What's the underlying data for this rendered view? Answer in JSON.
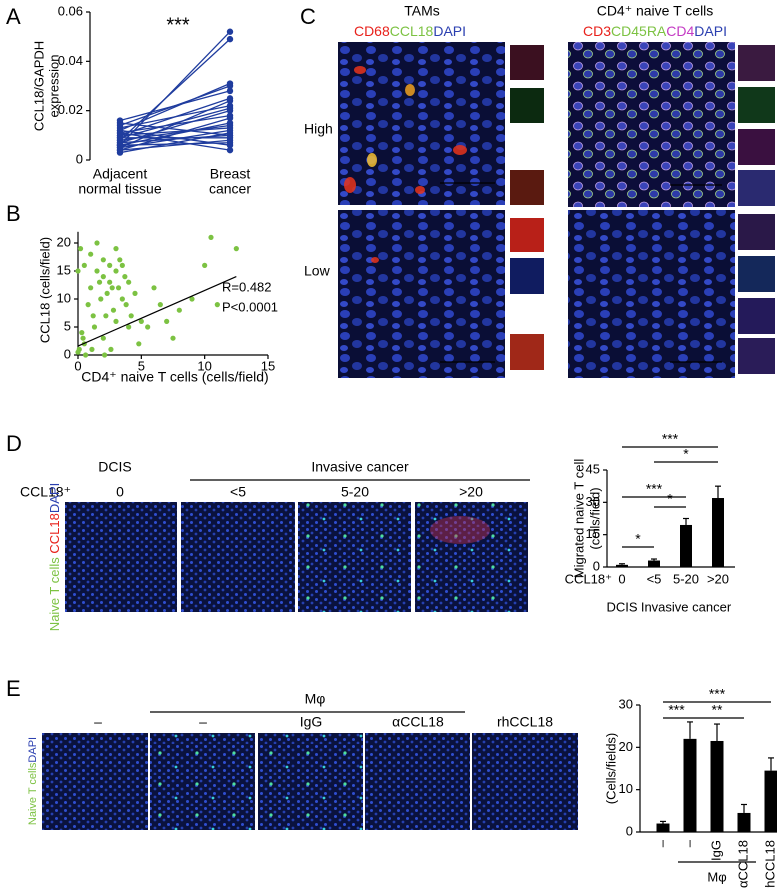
{
  "panel_letters": [
    "A",
    "B",
    "C",
    "D",
    "E"
  ],
  "chart_data": [
    {
      "type": "line",
      "annotation": "***",
      "ylabel": [
        "CCL18/GAPDH",
        "expression"
      ],
      "categories": [
        [
          "Adjacent",
          "normal tissue"
        ],
        [
          "Breast",
          "cancer"
        ]
      ],
      "color": "#1f3c9e",
      "ylim": [
        0,
        0.06
      ],
      "yticks": [
        0,
        0.02,
        0.04,
        0.06
      ],
      "series": [
        {
          "values": [
            0.006,
            0.052
          ]
        },
        {
          "values": [
            0.008,
            0.049
          ]
        },
        {
          "values": [
            0.012,
            0.031
          ]
        },
        {
          "values": [
            0.014,
            0.03
          ]
        },
        {
          "values": [
            0.016,
            0.028
          ]
        },
        {
          "values": [
            0.01,
            0.025
          ]
        },
        {
          "values": [
            0.005,
            0.024
          ]
        },
        {
          "values": [
            0.013,
            0.022
          ]
        },
        {
          "values": [
            0.009,
            0.021
          ]
        },
        {
          "values": [
            0.007,
            0.02
          ]
        },
        {
          "values": [
            0.011,
            0.018
          ]
        },
        {
          "values": [
            0.004,
            0.017
          ]
        },
        {
          "values": [
            0.006,
            0.015
          ]
        },
        {
          "values": [
            0.008,
            0.014
          ]
        },
        {
          "values": [
            0.01,
            0.013
          ]
        },
        {
          "values": [
            0.005,
            0.012
          ]
        },
        {
          "values": [
            0.003,
            0.011
          ]
        },
        {
          "values": [
            0.007,
            0.01
          ]
        },
        {
          "values": [
            0.009,
            0.009
          ]
        },
        {
          "values": [
            0.004,
            0.008
          ]
        },
        {
          "values": [
            0.006,
            0.007
          ]
        },
        {
          "values": [
            0.012,
            0.006
          ]
        },
        {
          "values": [
            0.015,
            0.01
          ]
        },
        {
          "values": [
            0.011,
            0.004
          ]
        }
      ]
    },
    {
      "type": "scatter",
      "xlabel": "CD4⁺ naive T cells (cells/field)",
      "ylabel": "CCL18 (cells/field)",
      "annotations": [
        "R=0.482",
        "P<0.0001"
      ],
      "color": "#7cc242",
      "xlim": [
        0,
        15
      ],
      "xticks": [
        0,
        5,
        10,
        15
      ],
      "ylim": [
        0,
        22
      ],
      "yticks": [
        0,
        5,
        10,
        15,
        20
      ],
      "x": [
        0,
        0.2,
        0.5,
        0.5,
        1,
        1,
        1.2,
        1.5,
        1.5,
        1.8,
        2,
        2,
        2,
        2.3,
        2.5,
        2.5,
        2.8,
        3,
        3,
        3,
        3.2,
        3.5,
        3.5,
        3.8,
        4,
        4,
        4.2,
        4.5,
        0.3,
        0.8,
        1.3,
        1.7,
        2.2,
        2.7,
        3.3,
        3.7,
        0.1,
        0.6,
        1.1,
        2.1,
        5,
        5.5,
        6,
        6.5,
        7,
        7.5,
        8,
        9,
        10,
        10.5,
        11,
        12.5,
        0,
        0.4,
        2.6,
        4.8
      ],
      "y": [
        15,
        19,
        16,
        2,
        12,
        18,
        7,
        15,
        20,
        10,
        14,
        17,
        3,
        11,
        13,
        16,
        8,
        15,
        6,
        19,
        12,
        10,
        16,
        9,
        13,
        5,
        7,
        11,
        4,
        9,
        5,
        13,
        7,
        12,
        17,
        14,
        1,
        0,
        1,
        0,
        6,
        5,
        12,
        9,
        6,
        3,
        8,
        10,
        16,
        21,
        9,
        19,
        0.5,
        3,
        1,
        2
      ],
      "fit": {
        "color": "#e0261e",
        "x": [
          0,
          12.5
        ],
        "y": [
          1.6,
          14
        ]
      }
    },
    {
      "type": "bar",
      "ylabel": [
        "Migrated naive T cell",
        "(cells/field)"
      ],
      "axis_label": "CCL18⁺",
      "categories": [
        "0",
        "<5",
        "5-20",
        ">20"
      ],
      "groups": [
        {
          "label": "DCIS",
          "span": [
            0,
            0
          ]
        },
        {
          "label": "Invasive cancer",
          "span": [
            1,
            3
          ]
        }
      ],
      "values": [
        1,
        3,
        19.5,
        32
      ],
      "errors": [
        0.5,
        0.7,
        3,
        5.5
      ],
      "color": "#000000",
      "ylim": [
        0,
        45
      ],
      "yticks": [
        0,
        15,
        30,
        45
      ],
      "significance": [
        {
          "between": [
            0,
            1
          ],
          "label": "*"
        },
        {
          "between": [
            1,
            2
          ],
          "label": "*"
        },
        {
          "between": [
            0,
            2
          ],
          "label": "***"
        },
        {
          "between": [
            1,
            3
          ],
          "label": "*"
        },
        {
          "between": [
            0,
            3
          ],
          "label": "***"
        }
      ]
    },
    {
      "type": "bar",
      "ylabel": "(Cells/fields)",
      "categories": [
        "–",
        "–",
        "IgG",
        "αCCL18",
        "rhCCL18"
      ],
      "groups": [
        {
          "label": "Mφ",
          "span": [
            1,
            3
          ]
        }
      ],
      "values": [
        2,
        22,
        21.5,
        4.5,
        14.5
      ],
      "errors": [
        0.5,
        4,
        4,
        2,
        3
      ],
      "color": "#000000",
      "ylim": [
        0,
        30
      ],
      "yticks": [
        0,
        10,
        20,
        30
      ],
      "significance": [
        {
          "between": [
            0,
            1
          ],
          "label": "***"
        },
        {
          "between": [
            1,
            3
          ],
          "label": "**"
        },
        {
          "between": [
            0,
            4
          ],
          "label": "***"
        }
      ]
    }
  ],
  "panel_c": {
    "tams": {
      "title": "TAMs",
      "stains": [
        "CD68",
        "CCL18",
        "DAPI"
      ]
    },
    "naive": {
      "title": "CD4⁺ naive T cells",
      "stains": [
        "CD3",
        "CD45RA",
        "CD4",
        "DAPI"
      ]
    },
    "rows": [
      "High",
      "Low"
    ]
  },
  "panel_d_images": {
    "groups": [
      "DCIS",
      "Invasive cancer"
    ],
    "row_label": "CCL18⁺",
    "columns": [
      "0",
      "<5",
      "5-20",
      ">20"
    ],
    "stains": [
      "Naive T cells",
      "CCL18",
      "DAPI"
    ]
  },
  "panel_e_images": {
    "group": "Mφ",
    "columns": [
      "–",
      "–",
      "IgG",
      "αCCL18",
      "rhCCL18"
    ],
    "stains": [
      "Naive T cells",
      "DAPI"
    ]
  }
}
